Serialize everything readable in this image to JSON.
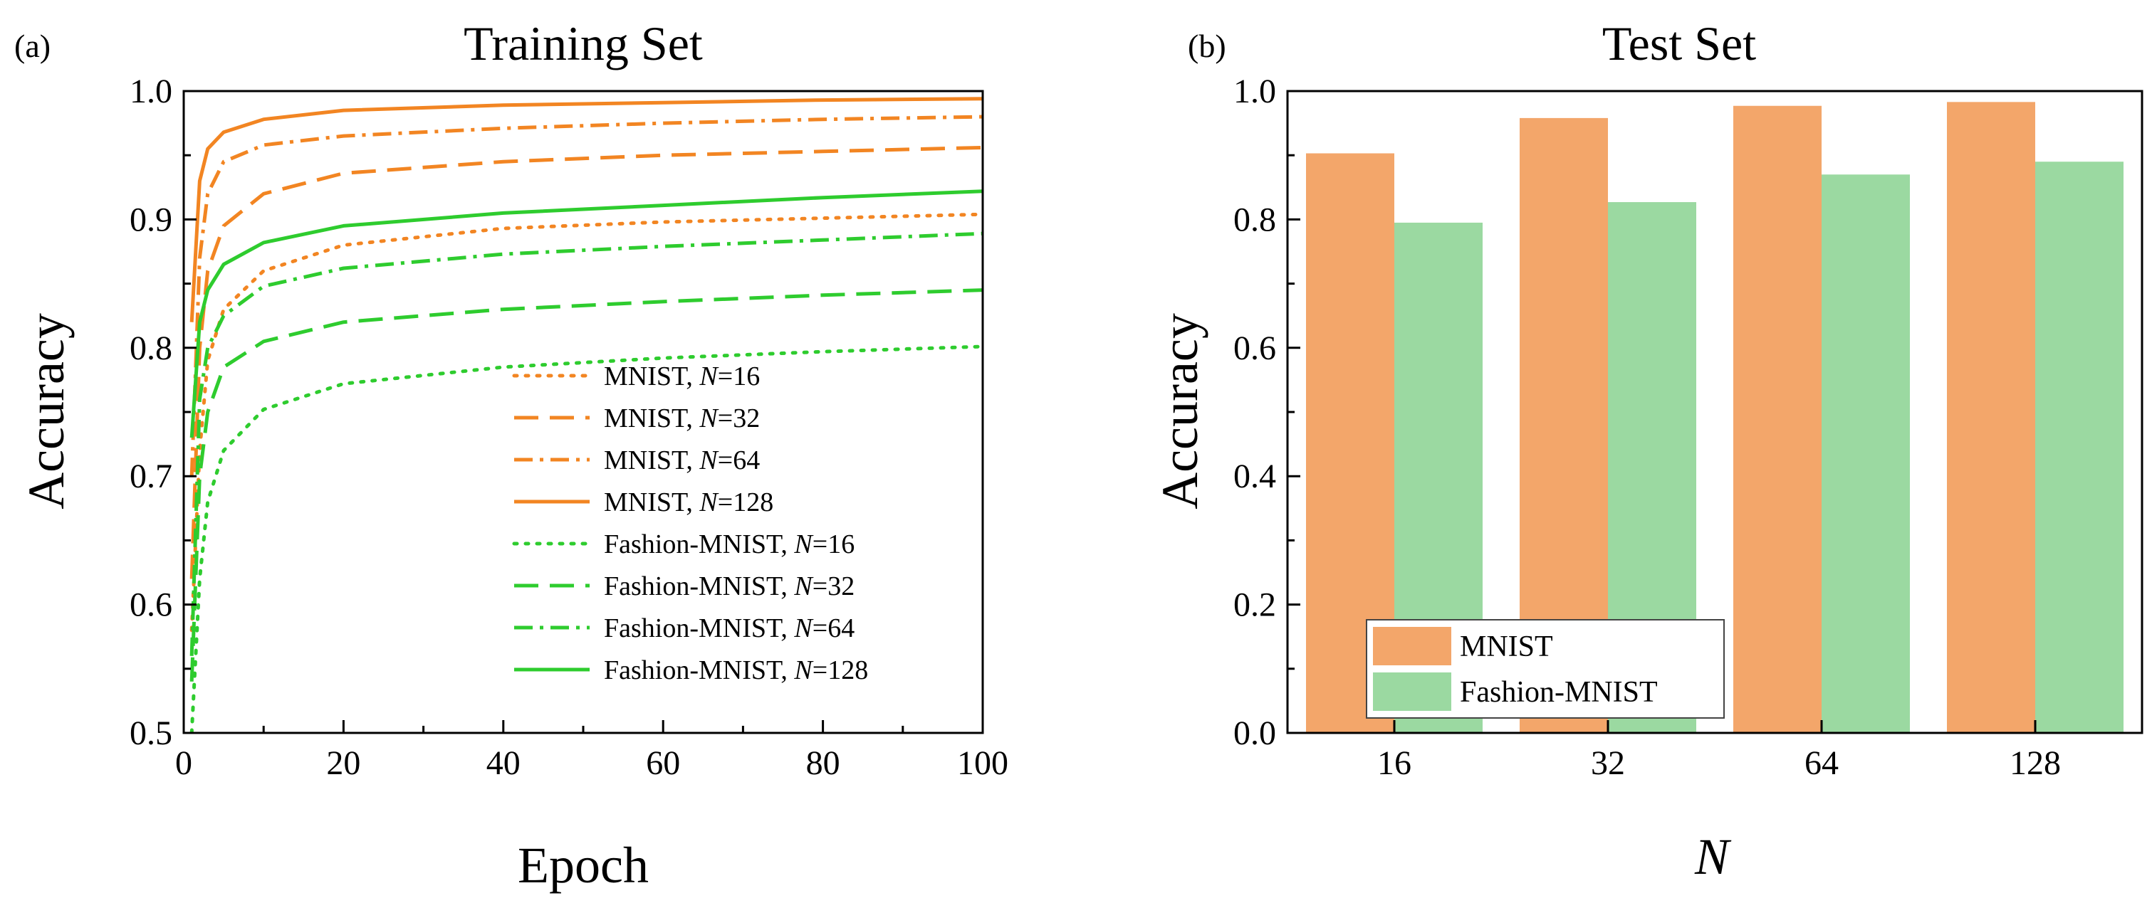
{
  "chart_data": [
    {
      "panel": "(a)",
      "type": "line",
      "title": "Training Set",
      "xlabel": "Epoch",
      "ylabel": "Accuracy",
      "xlim": [
        0,
        100
      ],
      "ylim": [
        0.5,
        1.0
      ],
      "xticks": [
        "0",
        "20",
        "40",
        "60",
        "80",
        "100"
      ],
      "yticks": [
        "0.5",
        "0.6",
        "0.7",
        "0.8",
        "0.9",
        "1.0"
      ],
      "legend_position": "bottom-right",
      "series": [
        {
          "name": "MNIST,",
          "n_label": "N",
          "n_value": "=16",
          "color": "#F28522",
          "dash": "dot",
          "x": [
            1,
            2,
            3,
            5,
            10,
            20,
            40,
            60,
            80,
            100
          ],
          "y": [
            0.58,
            0.72,
            0.79,
            0.83,
            0.86,
            0.88,
            0.893,
            0.898,
            0.901,
            0.904
          ]
        },
        {
          "name": "MNIST,",
          "n_label": "N",
          "n_value": "=32",
          "color": "#F28522",
          "dash": "dash",
          "x": [
            1,
            2,
            3,
            5,
            10,
            20,
            40,
            60,
            80,
            100
          ],
          "y": [
            0.62,
            0.8,
            0.86,
            0.895,
            0.92,
            0.936,
            0.945,
            0.95,
            0.953,
            0.956
          ]
        },
        {
          "name": "MNIST,",
          "n_label": "N",
          "n_value": "=64",
          "color": "#F28522",
          "dash": "dashdot",
          "x": [
            1,
            2,
            3,
            5,
            10,
            20,
            40,
            60,
            80,
            100
          ],
          "y": [
            0.7,
            0.87,
            0.92,
            0.945,
            0.958,
            0.965,
            0.971,
            0.975,
            0.978,
            0.98
          ]
        },
        {
          "name": "MNIST,",
          "n_label": "N",
          "n_value": "=128",
          "color": "#F28522",
          "dash": "solid",
          "x": [
            1,
            2,
            3,
            5,
            10,
            20,
            40,
            60,
            80,
            100
          ],
          "y": [
            0.82,
            0.93,
            0.955,
            0.968,
            0.978,
            0.985,
            0.989,
            0.991,
            0.993,
            0.994
          ]
        },
        {
          "name": "Fashion-MNIST,",
          "n_label": "N",
          "n_value": "=16",
          "color": "#2ECC2E",
          "dash": "dot",
          "x": [
            1,
            2,
            3,
            5,
            10,
            20,
            40,
            60,
            80,
            100
          ],
          "y": [
            0.5,
            0.62,
            0.68,
            0.72,
            0.752,
            0.772,
            0.785,
            0.792,
            0.797,
            0.801
          ]
        },
        {
          "name": "Fashion-MNIST,",
          "n_label": "N",
          "n_value": "=32",
          "color": "#2ECC2E",
          "dash": "dash",
          "x": [
            1,
            2,
            3,
            5,
            10,
            20,
            40,
            60,
            80,
            100
          ],
          "y": [
            0.54,
            0.7,
            0.75,
            0.785,
            0.805,
            0.82,
            0.83,
            0.836,
            0.841,
            0.845
          ]
        },
        {
          "name": "Fashion-MNIST,",
          "n_label": "N",
          "n_value": "=64",
          "color": "#2ECC2E",
          "dash": "dashdot",
          "x": [
            1,
            2,
            3,
            5,
            10,
            20,
            40,
            60,
            80,
            100
          ],
          "y": [
            0.56,
            0.76,
            0.8,
            0.825,
            0.848,
            0.862,
            0.873,
            0.879,
            0.884,
            0.889
          ]
        },
        {
          "name": "Fashion-MNIST,",
          "n_label": "N",
          "n_value": "=128",
          "color": "#2ECC2E",
          "dash": "solid",
          "x": [
            1,
            2,
            3,
            5,
            10,
            20,
            40,
            60,
            80,
            100
          ],
          "y": [
            0.73,
            0.82,
            0.845,
            0.865,
            0.882,
            0.895,
            0.905,
            0.911,
            0.917,
            0.922
          ]
        }
      ]
    },
    {
      "panel": "(b)",
      "type": "bar",
      "title": "Test Set",
      "xlabel": "N",
      "ylabel": "Accuracy",
      "ylim": [
        0.0,
        1.0
      ],
      "yticks": [
        "0.0",
        "0.2",
        "0.4",
        "0.6",
        "0.8",
        "1.0"
      ],
      "categories": [
        "16",
        "32",
        "64",
        "128"
      ],
      "legend_position": "bottom-left",
      "series": [
        {
          "name": "MNIST",
          "color": "#F3A66A",
          "values": [
            0.903,
            0.958,
            0.977,
            0.983
          ]
        },
        {
          "name": "Fashion-MNIST",
          "color": "#9BD9A1",
          "values": [
            0.795,
            0.827,
            0.87,
            0.89
          ]
        }
      ]
    }
  ]
}
